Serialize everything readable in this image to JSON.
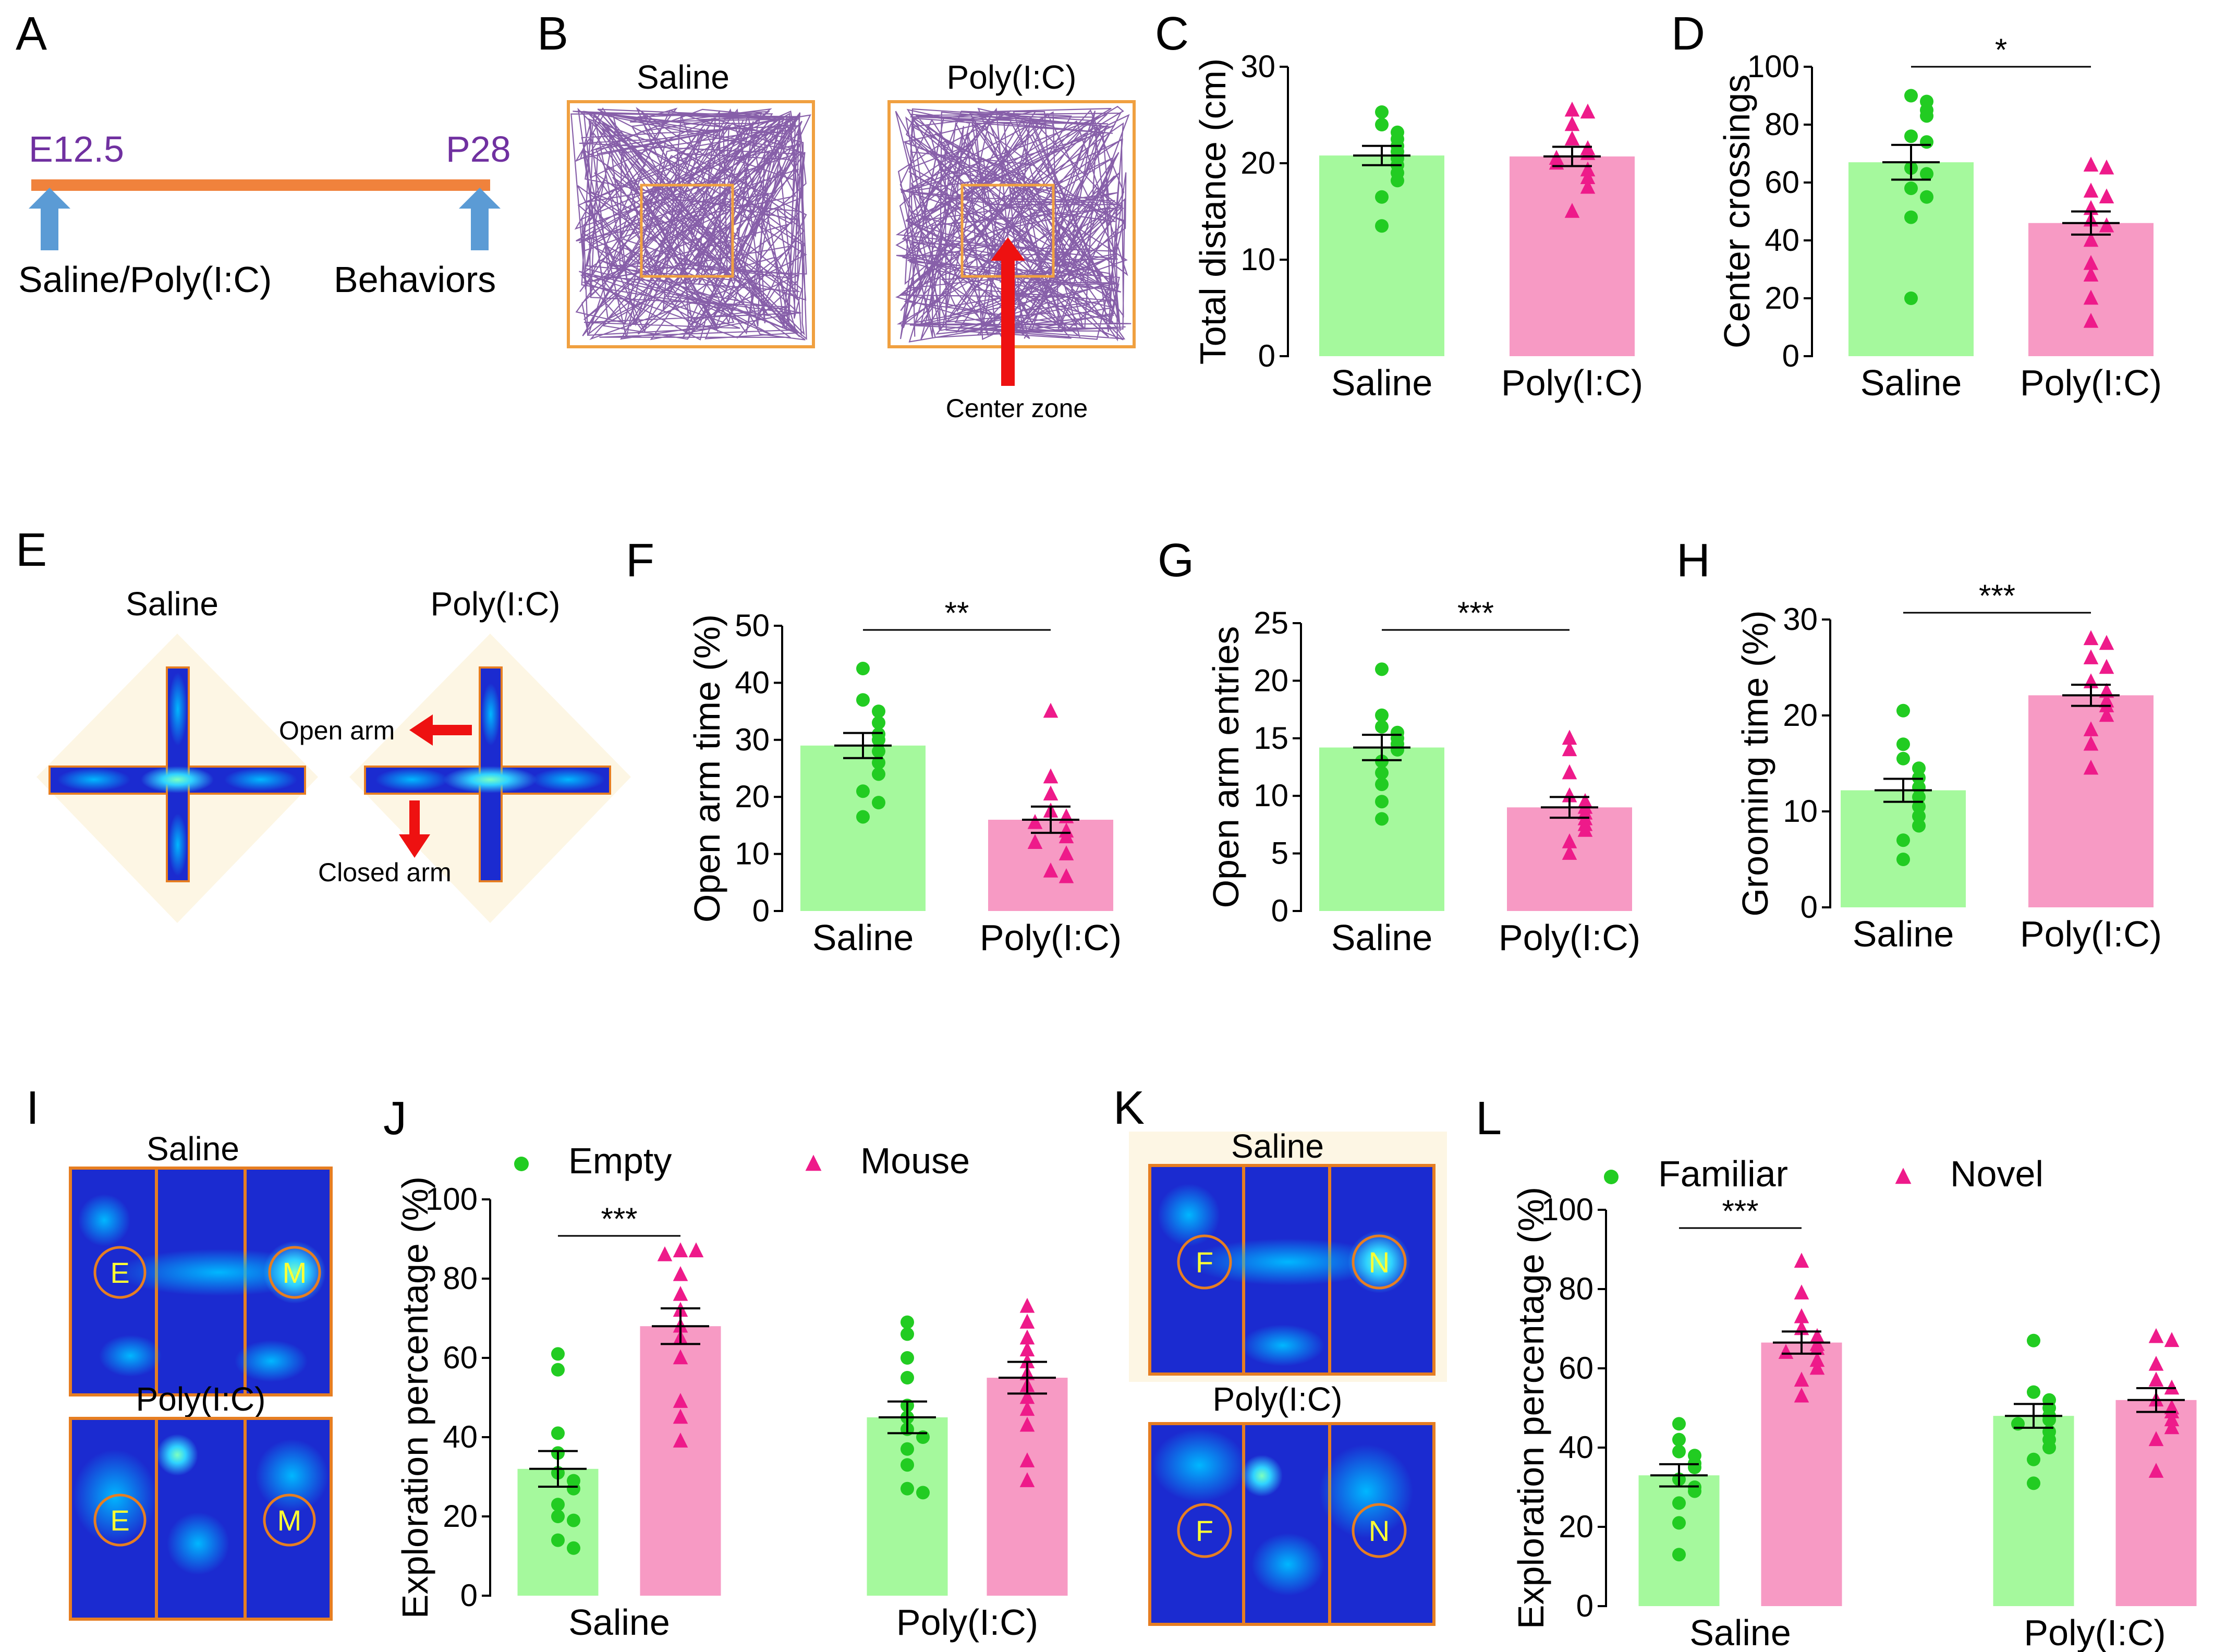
{
  "colors": {
    "saline_bar": "#a5f99d",
    "polyic_bar": "#f79ac4",
    "saline_point": "#22cc22",
    "polyic_point": "#ee1a8a",
    "timeline": "#f0823c",
    "timeline_text": "#7030a0",
    "arrow_blue": "#5b9bd5",
    "arrow_red": "#ee1111",
    "track": "#7a4ea0",
    "box": "#f0a040",
    "heatmap_bg": "#1b2bd0",
    "heatmap_border": "#e67e22"
  },
  "panel_labels": [
    "A",
    "B",
    "C",
    "D",
    "E",
    "F",
    "G",
    "H",
    "I",
    "J",
    "K",
    "L"
  ],
  "panelA": {
    "start_label": "E12.5",
    "end_label": "P28",
    "start_caption": "Saline/Poly(I:C)",
    "end_caption": "Behaviors"
  },
  "panelB": {
    "saline_title": "Saline",
    "polyic_title": "Poly(I:C)",
    "annotation": "Center zone"
  },
  "panelE": {
    "saline_title": "Saline",
    "polyic_title": "Poly(I:C)",
    "open_arm": "Open arm",
    "closed_arm": "Closed arm"
  },
  "panelI": {
    "saline_title": "Saline",
    "polyic_title": "Poly(I:C)",
    "left_mark": "E",
    "right_mark": "M"
  },
  "panelK": {
    "saline_title": "Saline",
    "polyic_title": "Poly(I:C)",
    "left_mark": "F",
    "right_mark": "N"
  },
  "chart_data": [
    {
      "id": "C",
      "type": "bar",
      "categories": [
        "Saline",
        "Poly(I:C)"
      ],
      "ylabel": "Total distance (cm)",
      "ylim": [
        0,
        30
      ],
      "yticks": [
        0,
        10,
        20,
        30
      ],
      "values": [
        20.8,
        20.7
      ],
      "sem": [
        1.0,
        1.0
      ],
      "points": [
        [
          25.3,
          24.0,
          23.2,
          22.5,
          21.8,
          21.2,
          20.5,
          19.8,
          19.0,
          18.2,
          16.5,
          13.5
        ],
        [
          25.5,
          25.3,
          24.0,
          22.5,
          21.5,
          21.0,
          20.5,
          20.0,
          19.3,
          18.5,
          17.5,
          15.0
        ]
      ],
      "significance": null
    },
    {
      "id": "D",
      "type": "bar",
      "categories": [
        "Saline",
        "Poly(I:C)"
      ],
      "ylabel": "Center crossings",
      "ylim": [
        0,
        100
      ],
      "yticks": [
        0,
        20,
        40,
        60,
        80,
        100
      ],
      "values": [
        67,
        46
      ],
      "sem": [
        6,
        4
      ],
      "points": [
        [
          90,
          88,
          85,
          83,
          76,
          74,
          65,
          63,
          58,
          55,
          48,
          20
        ],
        [
          66,
          65,
          57,
          55,
          51,
          47,
          45,
          40,
          32,
          28,
          20,
          12
        ]
      ],
      "significance": "*"
    },
    {
      "id": "F",
      "type": "bar",
      "categories": [
        "Saline",
        "Poly(I:C)"
      ],
      "ylabel": "Open arm time (%)",
      "ylim": [
        0,
        50
      ],
      "yticks": [
        0,
        10,
        20,
        30,
        40,
        50
      ],
      "values": [
        29,
        16
      ],
      "sem": [
        2.2,
        2.3
      ],
      "points": [
        [
          42.5,
          37,
          35,
          33,
          31,
          30,
          28,
          26,
          24,
          21,
          19,
          16.5
        ],
        [
          35,
          23.5,
          20.5,
          17.5,
          16.5,
          15.5,
          14,
          13,
          12,
          10,
          7,
          6
        ]
      ],
      "significance": "**"
    },
    {
      "id": "G",
      "type": "bar",
      "categories": [
        "Saline",
        "Poly(I:C)"
      ],
      "ylabel": "Open arm entries",
      "ylim": [
        0,
        25
      ],
      "yticks": [
        0,
        5,
        10,
        15,
        20,
        25
      ],
      "values": [
        14.2,
        9.0
      ],
      "sem": [
        1.1,
        0.9
      ],
      "points": [
        [
          21,
          17,
          16,
          15.5,
          15,
          14.5,
          14,
          13,
          12,
          11,
          9.5,
          8
        ],
        [
          15,
          14,
          12,
          10,
          9.5,
          9,
          8.5,
          8,
          7.5,
          7,
          6,
          5
        ]
      ],
      "significance": "***"
    },
    {
      "id": "H",
      "type": "bar",
      "categories": [
        "Saline",
        "Poly(I:C)"
      ],
      "ylabel": "Grooming time (%)",
      "ylim": [
        0,
        30
      ],
      "yticks": [
        0,
        10,
        20,
        30
      ],
      "values": [
        12.2,
        22.1
      ],
      "sem": [
        1.2,
        1.1
      ],
      "points": [
        [
          20.5,
          17,
          15.5,
          14.5,
          13.5,
          12.5,
          11.5,
          10.5,
          9.5,
          8.5,
          7,
          5
        ],
        [
          28,
          27.5,
          26,
          25,
          23.5,
          22.5,
          21.5,
          21,
          20,
          18.5,
          17,
          14.5
        ]
      ],
      "significance": "***"
    },
    {
      "id": "J",
      "type": "bar",
      "categories": [
        "Saline",
        "Poly(I:C)"
      ],
      "ylabel": "Exploration percentage (%)",
      "ylim": [
        0,
        100
      ],
      "yticks": [
        0,
        20,
        40,
        60,
        80,
        100
      ],
      "series": [
        {
          "name": "Empty",
          "values": [
            32,
            45
          ],
          "sem": [
            4.5,
            4
          ],
          "points": [
            [
              61,
              57,
              41,
              36,
              31,
              29,
              27,
              23,
              20,
              19,
              14,
              12
            ],
            [
              69,
              66,
              60,
              55,
              48,
              45,
              42,
              40,
              37,
              33,
              27,
              26
            ]
          ]
        },
        {
          "name": "Mouse",
          "values": [
            68,
            55
          ],
          "sem": [
            4.5,
            4
          ],
          "points": [
            [
              87,
              87,
              86,
              81,
              76,
              72,
              68,
              65,
              60,
              49,
              45,
              39
            ],
            [
              73,
              69,
              65,
              62,
              59,
              56,
              53,
              50,
              47,
              43,
              34,
              29
            ]
          ]
        }
      ],
      "significance": "***"
    },
    {
      "id": "L",
      "type": "bar",
      "categories": [
        "Saline",
        "Poly(I:C)"
      ],
      "ylabel": "Exploration percentage (%)",
      "ylim": [
        0,
        100
      ],
      "yticks": [
        0,
        20,
        40,
        60,
        80,
        100
      ],
      "series": [
        {
          "name": "Familiar",
          "values": [
            33,
            48
          ],
          "sem": [
            2.8,
            3
          ],
          "points": [
            [
              46,
              42,
              39,
              38,
              36,
              35,
              32,
              30,
              29,
              26,
              21,
              13
            ],
            [
              67,
              54,
              52,
              50,
              48,
              47,
              46,
              44,
              42,
              40,
              37,
              31
            ]
          ]
        },
        {
          "name": "Novel",
          "values": [
            66.5,
            52
          ],
          "sem": [
            2.8,
            3
          ],
          "points": [
            [
              87,
              79,
              73,
              70,
              68,
              66,
              65,
              64,
              62,
              60,
              57,
              53
            ],
            [
              68,
              67,
              61,
              57,
              55,
              52,
              50,
              49,
              47,
              45,
              42,
              34
            ]
          ]
        }
      ],
      "significance": "***"
    }
  ]
}
